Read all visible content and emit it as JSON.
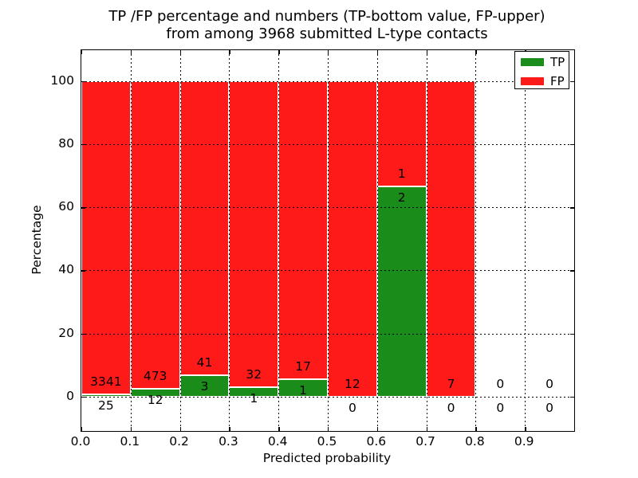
{
  "title": {
    "line1": "TP /FP percentage and numbers (TP-bottom value, FP-upper)",
    "line2": "from among 3968 submitted L-type contacts"
  },
  "axes": {
    "xlabel": "Predicted probability",
    "ylabel": "Percentage",
    "x_tick_labels": [
      "0.0",
      "0.1",
      "0.2",
      "0.3",
      "0.4",
      "0.5",
      "0.6",
      "0.7",
      "0.8",
      "0.9"
    ],
    "x_tick_values": [
      0.0,
      0.1,
      0.2,
      0.3,
      0.4,
      0.5,
      0.6,
      0.7,
      0.8,
      0.9
    ],
    "y_tick_labels": [
      "0",
      "20",
      "40",
      "60",
      "80",
      "100"
    ],
    "y_tick_values": [
      0,
      20,
      40,
      60,
      80,
      100
    ],
    "xlim": [
      0.0,
      1.0
    ],
    "ylim": [
      -10.85,
      109.75
    ],
    "grid": "dotted-black-above-bars"
  },
  "legend": {
    "items": [
      {
        "label": "TP",
        "color": "#1a8c1a"
      },
      {
        "label": "FP",
        "color": "#ff1a1a"
      }
    ]
  },
  "chart_data": {
    "type": "bar",
    "stacked": true,
    "title": "TP /FP percentage and numbers (TP-bottom value, FP-upper) from among 3968 submitted L-type contacts",
    "xlabel": "Predicted probability",
    "ylabel": "Percentage",
    "bin_width": 0.1,
    "colors": {
      "tp": "#1a8c1a",
      "fp": "#ff1a1a",
      "bar_edge": "#ffffff"
    },
    "bars": [
      {
        "x_start": 0.0,
        "x_end": 0.1,
        "tp_count": 25,
        "fp_count": 3341,
        "tp_pct": 0.74,
        "fp_top_pct": 100,
        "drawn": true
      },
      {
        "x_start": 0.1,
        "x_end": 0.2,
        "tp_count": 12,
        "fp_count": 473,
        "tp_pct": 2.47,
        "fp_top_pct": 100,
        "drawn": true
      },
      {
        "x_start": 0.2,
        "x_end": 0.3,
        "tp_count": 3,
        "fp_count": 41,
        "tp_pct": 6.82,
        "fp_top_pct": 100,
        "drawn": true
      },
      {
        "x_start": 0.3,
        "x_end": 0.4,
        "tp_count": 1,
        "fp_count": 32,
        "tp_pct": 3.03,
        "fp_top_pct": 100,
        "drawn": true
      },
      {
        "x_start": 0.4,
        "x_end": 0.5,
        "tp_count": 1,
        "fp_count": 17,
        "tp_pct": 5.56,
        "fp_top_pct": 100,
        "drawn": true
      },
      {
        "x_start": 0.5,
        "x_end": 0.6,
        "tp_count": 0,
        "fp_count": 12,
        "tp_pct": 0.0,
        "fp_top_pct": 100,
        "drawn": true
      },
      {
        "x_start": 0.6,
        "x_end": 0.7,
        "tp_count": 2,
        "fp_count": 1,
        "tp_pct": 66.67,
        "fp_top_pct": 100,
        "drawn": true
      },
      {
        "x_start": 0.7,
        "x_end": 0.8,
        "tp_count": 0,
        "fp_count": 7,
        "tp_pct": 0.0,
        "fp_top_pct": 100,
        "drawn": true
      },
      {
        "x_start": 0.8,
        "x_end": 0.9,
        "tp_count": 0,
        "fp_count": 0,
        "tp_pct": 0.0,
        "fp_top_pct": 0,
        "drawn": false
      },
      {
        "x_start": 0.9,
        "x_end": 1.0,
        "tp_count": 0,
        "fp_count": 0,
        "tp_pct": 0.0,
        "fp_top_pct": 0,
        "drawn": false
      }
    ]
  }
}
